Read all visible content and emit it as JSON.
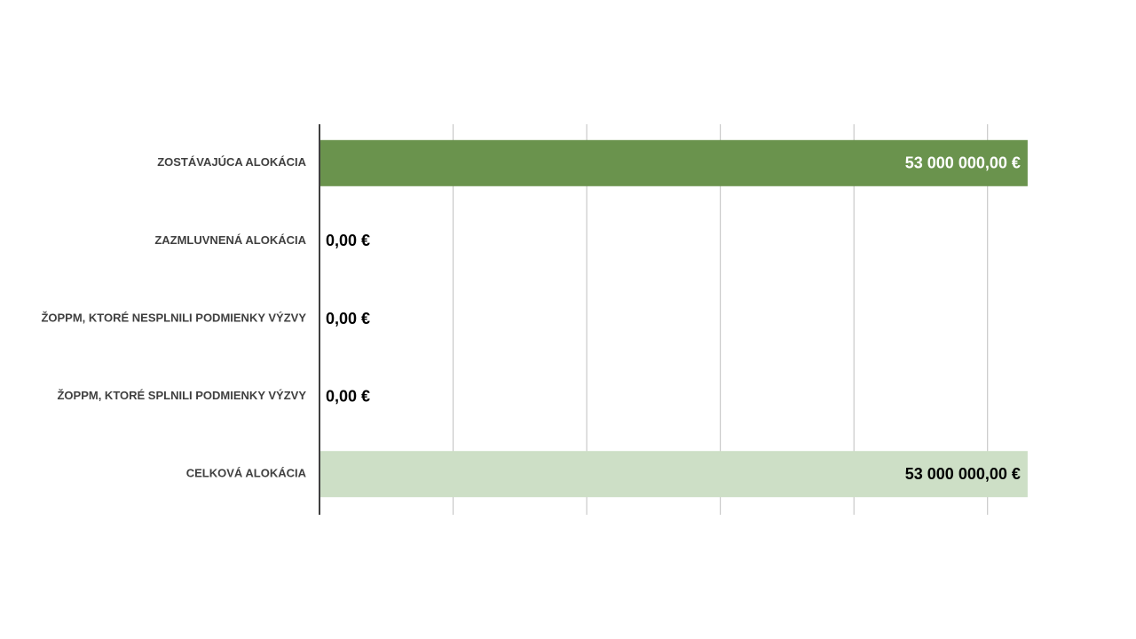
{
  "chart_data": {
    "type": "hbar",
    "categories": [
      "ZOSTÁVAJÚCA  ALOKÁCIA",
      "ZAZMLUVNENÁ  ALOKÁCIA",
      "ŽOPPM, KTORÉ NESPLNILI PODMIENKY VÝZVY",
      "ŽOPPM, KTORÉ SPLNILI PODMIENKY VÝZVY",
      "CELKOVÁ ALOKÁCIA"
    ],
    "values": [
      53000000,
      0,
      0,
      0,
      53000000
    ],
    "value_labels": [
      "53 000 000,00 €",
      "0,00 €",
      "0,00 €",
      "0,00 €",
      "53 000 000,00 €"
    ],
    "colors": [
      "#6a934d",
      "#6a934d",
      "#6a934d",
      "#6a934d",
      "#cddfc6"
    ],
    "xlim": [
      0,
      55000000
    ],
    "xticks": [
      0,
      10000000,
      20000000,
      30000000,
      40000000,
      50000000
    ],
    "grid": true
  }
}
